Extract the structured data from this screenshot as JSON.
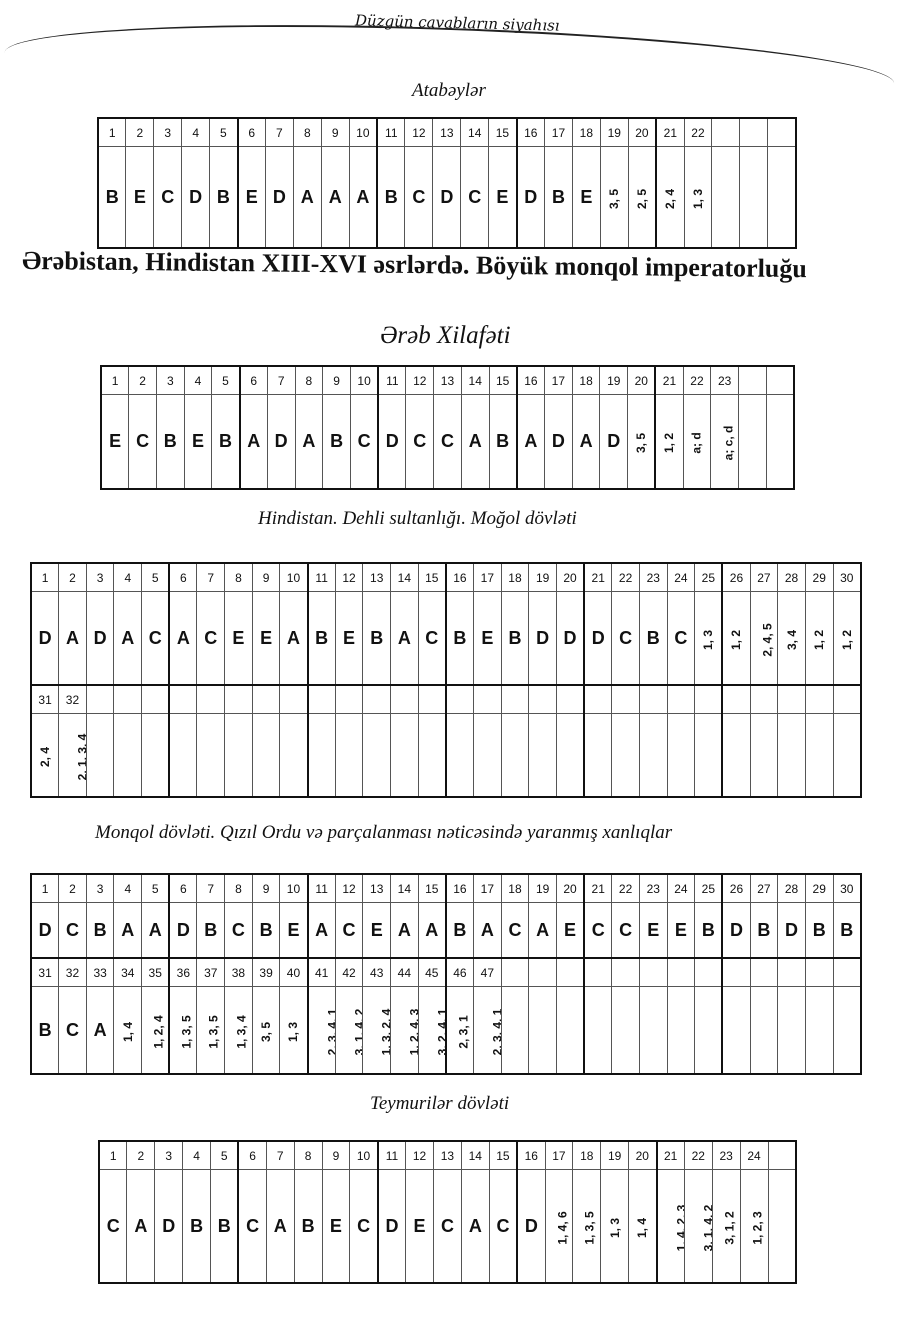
{
  "page_header": "Düzgün cavabların siyahısı",
  "chapter_title": "Ərəbistan, Hindistan XIII-XVI əsrlərdə. Böyük monqol imperatorluğu",
  "sections": [
    {
      "title": "Atabəylər",
      "rows": [
        {
          "numbers": [
            "1",
            "2",
            "3",
            "4",
            "5",
            "6",
            "7",
            "8",
            "9",
            "10",
            "11",
            "12",
            "13",
            "14",
            "15",
            "16",
            "17",
            "18",
            "19",
            "20",
            "21",
            "22",
            "",
            "",
            ""
          ],
          "answers": [
            "B",
            "E",
            "C",
            "D",
            "B",
            "E",
            "D",
            "A",
            "A",
            "A",
            "B",
            "C",
            "D",
            "C",
            "E",
            "D",
            "B",
            "E",
            "3, 5",
            "2, 5",
            "2, 4",
            "1, 3",
            "",
            "",
            ""
          ]
        }
      ]
    },
    {
      "title": "Ərəb Xilafəti",
      "rows": [
        {
          "numbers": [
            "1",
            "2",
            "3",
            "4",
            "5",
            "6",
            "7",
            "8",
            "9",
            "10",
            "11",
            "12",
            "13",
            "14",
            "15",
            "16",
            "17",
            "18",
            "19",
            "20",
            "21",
            "22",
            "23",
            "",
            ""
          ],
          "answers": [
            "E",
            "C",
            "B",
            "E",
            "B",
            "A",
            "D",
            "A",
            "B",
            "C",
            "D",
            "C",
            "C",
            "A",
            "B",
            "A",
            "D",
            "A",
            "D",
            "3, 5",
            "1, 2",
            "a; d",
            "a; c, d",
            "",
            ""
          ]
        }
      ]
    },
    {
      "title": "Hindistan. Dehli sultanlığı. Moğol dövləti",
      "rows": [
        {
          "numbers": [
            "1",
            "2",
            "3",
            "4",
            "5",
            "6",
            "7",
            "8",
            "9",
            "10",
            "11",
            "12",
            "13",
            "14",
            "15",
            "16",
            "17",
            "18",
            "19",
            "20",
            "21",
            "22",
            "23",
            "24",
            "25",
            "26",
            "27",
            "28",
            "29",
            "30"
          ],
          "answers": [
            "D",
            "A",
            "D",
            "A",
            "C",
            "A",
            "C",
            "E",
            "E",
            "A",
            "B",
            "E",
            "B",
            "A",
            "C",
            "B",
            "E",
            "B",
            "D",
            "D",
            "D",
            "C",
            "B",
            "C",
            "1, 3",
            "1, 2",
            "2, 4, 5",
            "3, 4",
            "1, 2",
            "1, 2"
          ]
        },
        {
          "numbers": [
            "31",
            "32",
            "",
            "",
            "",
            "",
            "",
            "",
            "",
            "",
            "",
            "",
            "",
            "",
            "",
            "",
            "",
            "",
            "",
            "",
            "",
            "",
            "",
            "",
            "",
            "",
            "",
            "",
            "",
            ""
          ],
          "answers": [
            "2, 4",
            "2, 1, 3, 4",
            "",
            "",
            "",
            "",
            "",
            "",
            "",
            "",
            "",
            "",
            "",
            "",
            "",
            "",
            "",
            "",
            "",
            "",
            "",
            "",
            "",
            "",
            "",
            "",
            "",
            "",
            "",
            ""
          ]
        }
      ]
    },
    {
      "title": "Monqol dövləti. Qızıl Ordu və parçalanması nəticəsində yaranmış xanlıqlar",
      "rows": [
        {
          "numbers": [
            "1",
            "2",
            "3",
            "4",
            "5",
            "6",
            "7",
            "8",
            "9",
            "10",
            "11",
            "12",
            "13",
            "14",
            "15",
            "16",
            "17",
            "18",
            "19",
            "20",
            "21",
            "22",
            "23",
            "24",
            "25",
            "26",
            "27",
            "28",
            "29",
            "30"
          ],
          "answers": [
            "D",
            "C",
            "B",
            "A",
            "A",
            "D",
            "B",
            "C",
            "B",
            "E",
            "A",
            "C",
            "E",
            "A",
            "A",
            "B",
            "A",
            "C",
            "A",
            "E",
            "C",
            "C",
            "E",
            "E",
            "B",
            "D",
            "B",
            "D",
            "B",
            "B"
          ]
        },
        {
          "numbers": [
            "31",
            "32",
            "33",
            "34",
            "35",
            "36",
            "37",
            "38",
            "39",
            "40",
            "41",
            "42",
            "43",
            "44",
            "45",
            "46",
            "47",
            "",
            "",
            "",
            "",
            "",
            "",
            "",
            "",
            "",
            "",
            "",
            "",
            ""
          ],
          "answers": [
            "B",
            "C",
            "A",
            "1, 4",
            "1, 2, 4",
            "1, 3, 5",
            "1, 3, 5",
            "1, 3, 4",
            "3, 5",
            "1, 3",
            "2, 3, 4, 1",
            "3, 1, 4, 2",
            "1, 3, 2, 4",
            "1, 2, 4, 3",
            "3, 2, 4, 1",
            "2, 3, 1",
            "2, 3, 4, 1",
            "",
            "",
            "",
            "",
            "",
            "",
            "",
            "",
            "",
            "",
            "",
            "",
            ""
          ]
        }
      ]
    },
    {
      "title": "Teymurilər dövləti",
      "rows": [
        {
          "numbers": [
            "1",
            "2",
            "3",
            "4",
            "5",
            "6",
            "7",
            "8",
            "9",
            "10",
            "11",
            "12",
            "13",
            "14",
            "15",
            "16",
            "17",
            "18",
            "19",
            "20",
            "21",
            "22",
            "23",
            "24",
            ""
          ],
          "answers": [
            "C",
            "A",
            "D",
            "B",
            "B",
            "C",
            "A",
            "B",
            "E",
            "C",
            "D",
            "E",
            "C",
            "A",
            "C",
            "D",
            "1, 4, 6",
            "1, 3, 5",
            "1, 3",
            "1, 4",
            "1, 4, 2, 3",
            "3, 1, 4, 2",
            "3, 1, 2",
            "1, 2, 3",
            ""
          ]
        }
      ]
    }
  ]
}
